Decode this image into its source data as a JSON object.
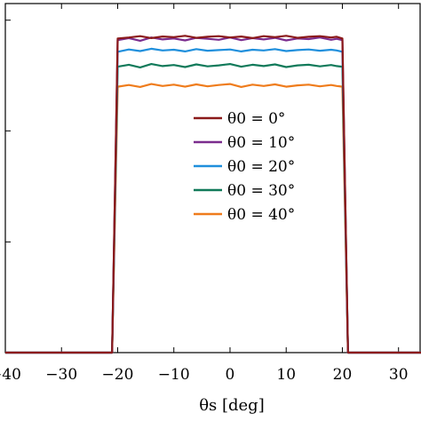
{
  "chart_data": {
    "type": "line",
    "title": "",
    "xlabel": "θs [deg]",
    "ylabel": "",
    "xlim": [
      -40,
      34
    ],
    "ylim": [
      0,
      1.05
    ],
    "grid": false,
    "legend_position": "center-right",
    "x_ticks": [
      "−40",
      "−30",
      "−20",
      "−10",
      "0",
      "10",
      "20",
      "30"
    ],
    "x_tick_values": [
      -40,
      -30,
      -20,
      -10,
      0,
      10,
      20,
      30
    ],
    "y_tick_values": [
      0,
      0.333,
      0.667,
      1.0
    ],
    "series": [
      {
        "name": "θ0 = 0°",
        "color": "#8b1a1a",
        "x": [
          -40,
          -21,
          -20,
          -18,
          -16,
          -14,
          -12,
          -10,
          -8,
          -6,
          -4,
          -2,
          0,
          2,
          4,
          6,
          8,
          10,
          12,
          14,
          16,
          18,
          19,
          20,
          21,
          34
        ],
        "y": [
          0,
          0,
          0.945,
          0.948,
          0.952,
          0.946,
          0.951,
          0.949,
          0.953,
          0.947,
          0.95,
          0.952,
          0.948,
          0.951,
          0.946,
          0.952,
          0.949,
          0.953,
          0.947,
          0.95,
          0.952,
          0.948,
          0.95,
          0.945,
          0,
          0
        ]
      },
      {
        "name": "θ0 = 10°",
        "color": "#7b2d8e",
        "x": [
          -40,
          -21,
          -20,
          -18,
          -16,
          -14,
          -12,
          -10,
          -8,
          -6,
          -4,
          -2,
          0,
          2,
          4,
          6,
          8,
          10,
          12,
          14,
          16,
          18,
          19,
          20,
          21,
          34
        ],
        "y": [
          0,
          0,
          0.94,
          0.946,
          0.938,
          0.948,
          0.942,
          0.945,
          0.939,
          0.947,
          0.944,
          0.941,
          0.948,
          0.94,
          0.946,
          0.942,
          0.947,
          0.939,
          0.945,
          0.943,
          0.948,
          0.941,
          0.944,
          0.94,
          0,
          0
        ]
      },
      {
        "name": "θ0 = 20°",
        "color": "#1f8fdc",
        "x": [
          -40,
          -21,
          -20,
          -18,
          -16,
          -14,
          -12,
          -10,
          -8,
          -6,
          -4,
          -2,
          0,
          2,
          4,
          6,
          8,
          10,
          12,
          14,
          16,
          18,
          19,
          20,
          21,
          34
        ],
        "y": [
          0,
          0,
          0.905,
          0.912,
          0.907,
          0.914,
          0.909,
          0.911,
          0.906,
          0.913,
          0.908,
          0.91,
          0.912,
          0.906,
          0.911,
          0.909,
          0.913,
          0.907,
          0.91,
          0.912,
          0.908,
          0.911,
          0.909,
          0.905,
          0,
          0
        ]
      },
      {
        "name": "θ0 = 30°",
        "color": "#117a5a",
        "x": [
          -40,
          -21,
          -20,
          -18,
          -16,
          -14,
          -12,
          -10,
          -8,
          -6,
          -4,
          -2,
          0,
          2,
          4,
          6,
          8,
          10,
          12,
          14,
          16,
          18,
          19,
          20,
          21,
          34
        ],
        "y": [
          0,
          0,
          0.86,
          0.866,
          0.858,
          0.868,
          0.862,
          0.865,
          0.859,
          0.867,
          0.861,
          0.864,
          0.868,
          0.86,
          0.866,
          0.862,
          0.867,
          0.859,
          0.864,
          0.866,
          0.861,
          0.865,
          0.862,
          0.86,
          0,
          0
        ]
      },
      {
        "name": "θ0 = 40°",
        "color": "#ef7c1c",
        "x": [
          -40,
          -21,
          -20,
          -18,
          -16,
          -14,
          -12,
          -10,
          -8,
          -6,
          -4,
          -2,
          0,
          2,
          4,
          6,
          8,
          10,
          12,
          14,
          16,
          18,
          19,
          20,
          21,
          34
        ],
        "y": [
          0,
          0,
          0.8,
          0.805,
          0.799,
          0.808,
          0.802,
          0.806,
          0.8,
          0.807,
          0.801,
          0.805,
          0.808,
          0.799,
          0.806,
          0.802,
          0.807,
          0.8,
          0.804,
          0.806,
          0.801,
          0.805,
          0.802,
          0.8,
          0,
          0
        ]
      }
    ]
  }
}
